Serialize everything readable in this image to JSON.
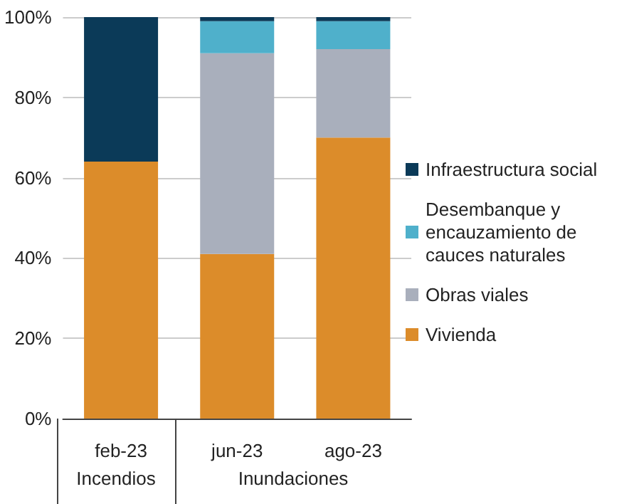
{
  "chart_data": {
    "type": "bar",
    "stacked": true,
    "categories": [
      "feb-23",
      "jun-23",
      "ago-23"
    ],
    "series": [
      {
        "name": "Vivienda",
        "color": "#dc8c2a",
        "values": [
          64,
          41,
          70
        ]
      },
      {
        "name": "Obras viales",
        "color": "#a9afbc",
        "values": [
          null,
          50,
          22
        ]
      },
      {
        "name": "Desembanque y encauzamiento de cauces naturales",
        "color": "#4fb0cb",
        "values": [
          null,
          8,
          7
        ]
      },
      {
        "name": "Infraestructura social",
        "color": "#0b3a58",
        "values": [
          36,
          1,
          1
        ]
      }
    ],
    "ylim": [
      0,
      100
    ],
    "yticks": [
      {
        "value": 0,
        "label": "0%"
      },
      {
        "value": 20,
        "label": "20%"
      },
      {
        "value": 40,
        "label": "40%"
      },
      {
        "value": 60,
        "label": "60%"
      },
      {
        "value": 80,
        "label": "80%"
      },
      {
        "value": 100,
        "label": "100%"
      }
    ],
    "grid": "y",
    "legend": "right",
    "annotations": [
      "Incendios",
      "Inundaciones"
    ]
  }
}
